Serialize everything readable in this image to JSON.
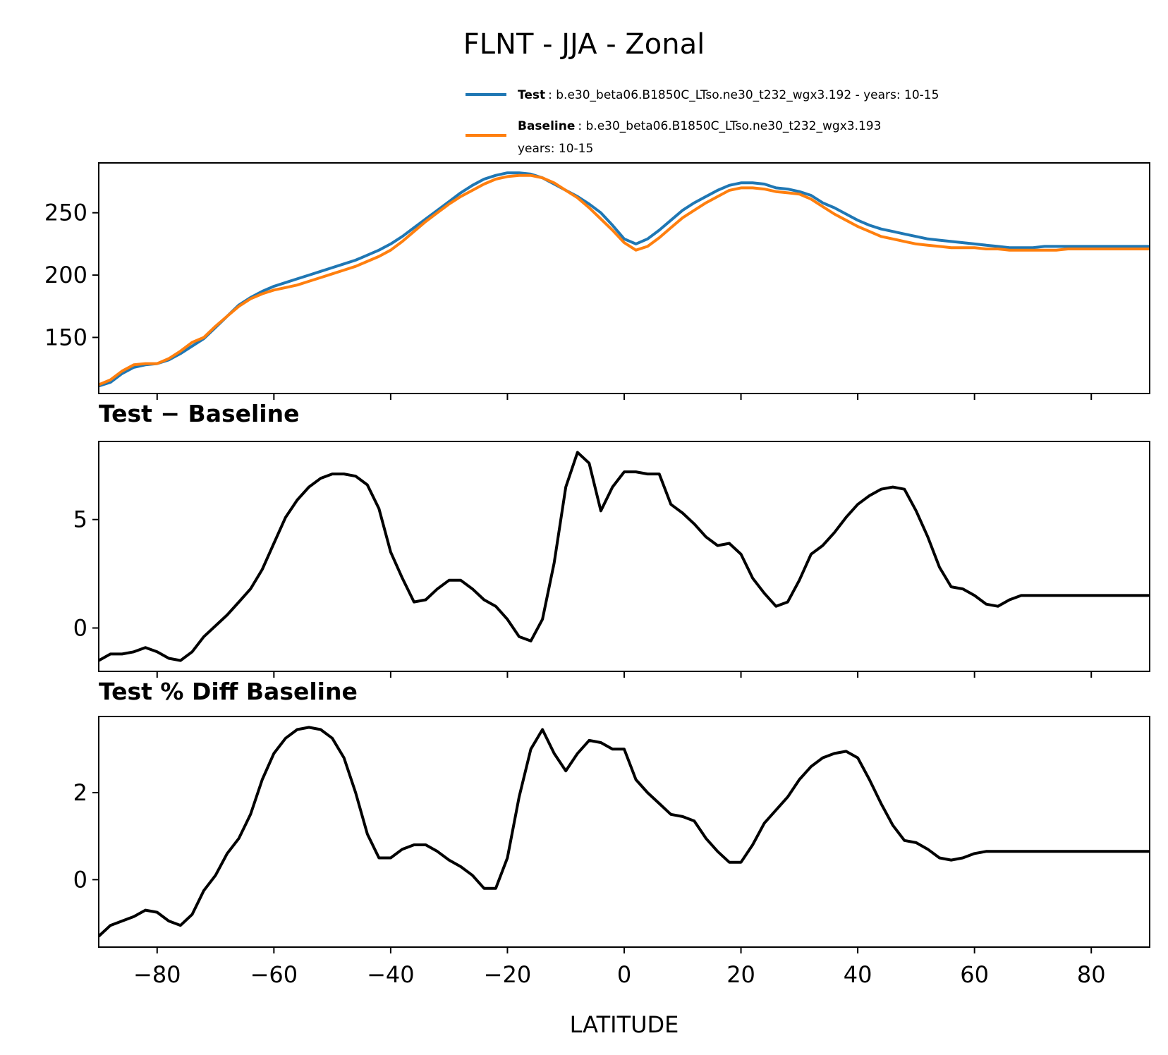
{
  "title": "FLNT - JJA - Zonal",
  "legend": {
    "placement": "top-right",
    "test_name": "Test",
    "test_desc": ": b.e30_beta06.B1850C_LTso.ne30_t232_wgx3.192 - years: 10-15",
    "base_name": "Baseline",
    "base_desc_line1": ": b.e30_beta06.B1850C_LTso.ne30_t232_wgx3.193",
    "base_desc_line2": "years: 10-15"
  },
  "colors": {
    "test": "#1f77b4",
    "baseline": "#ff7f0e",
    "diff": "#000000"
  },
  "chart_data": [
    {
      "type": "line",
      "title": "",
      "xlabel": "",
      "ylabel": "",
      "xlim": [
        -90,
        90
      ],
      "ylim": [
        105,
        290
      ],
      "yticks": [
        150,
        200,
        250
      ],
      "ytick_labels": [
        "150",
        "200",
        "250"
      ],
      "x": [
        -90,
        -88,
        -86,
        -84,
        -82,
        -80,
        -78,
        -76,
        -74,
        -72,
        -70,
        -68,
        -66,
        -64,
        -62,
        -60,
        -58,
        -56,
        -54,
        -52,
        -50,
        -48,
        -46,
        -44,
        -42,
        -40,
        -38,
        -36,
        -34,
        -32,
        -30,
        -28,
        -26,
        -24,
        -22,
        -20,
        -18,
        -16,
        -14,
        -12,
        -10,
        -8,
        -6,
        -4,
        -2,
        0,
        2,
        4,
        6,
        8,
        10,
        12,
        14,
        16,
        18,
        20,
        22,
        24,
        26,
        28,
        30,
        32,
        34,
        36,
        38,
        40,
        42,
        44,
        46,
        48,
        50,
        52,
        54,
        56,
        58,
        60,
        62,
        64,
        66,
        68,
        70,
        72,
        74,
        76,
        78,
        80,
        82,
        84,
        86,
        88,
        90
      ],
      "series": [
        {
          "name": "Test",
          "values": [
            111,
            114,
            121,
            126,
            128,
            129,
            132,
            137,
            143,
            149,
            158,
            167,
            176,
            182,
            187,
            191,
            194,
            197,
            200,
            203,
            206,
            209,
            212,
            216,
            220,
            225,
            231,
            238,
            245,
            252,
            259,
            266,
            272,
            277,
            280,
            282,
            282,
            281,
            278,
            273,
            268,
            263,
            257,
            250,
            240,
            229,
            225,
            229,
            236,
            244,
            252,
            258,
            263,
            268,
            272,
            274,
            274,
            273,
            270,
            269,
            267,
            264,
            258,
            254,
            249,
            244,
            240,
            237,
            235,
            233,
            231,
            229,
            228,
            227,
            226,
            225,
            224,
            223,
            222,
            222,
            222,
            223,
            223,
            223,
            223,
            223,
            223,
            223,
            223,
            223,
            223
          ],
          "color": "#1f77b4"
        },
        {
          "name": "Baseline",
          "values": [
            112,
            116,
            123,
            128,
            129,
            129,
            133,
            139,
            146,
            150,
            159,
            167,
            175,
            181,
            185,
            188,
            190,
            192,
            195,
            198,
            201,
            204,
            207,
            211,
            215,
            220,
            227,
            235,
            243,
            250,
            257,
            263,
            268,
            273,
            277,
            279,
            280,
            280,
            278,
            274,
            268,
            262,
            254,
            245,
            236,
            226,
            220,
            223,
            230,
            238,
            246,
            252,
            258,
            263,
            268,
            270,
            270,
            269,
            267,
            266,
            265,
            261,
            255,
            249,
            244,
            239,
            235,
            231,
            229,
            227,
            225,
            224,
            223,
            222,
            222,
            222,
            221,
            221,
            220,
            220,
            220,
            220,
            220,
            221,
            221,
            221,
            221,
            221,
            221,
            221,
            221
          ],
          "color": "#ff7f0e"
        }
      ]
    },
    {
      "type": "line",
      "title": "Test − Baseline",
      "xlabel": "",
      "ylabel": "",
      "xlim": [
        -90,
        90
      ],
      "ylim": [
        -2.0,
        8.6
      ],
      "yticks": [
        0,
        5
      ],
      "ytick_labels": [
        "0",
        "5"
      ],
      "x": [
        -90,
        -88,
        -86,
        -84,
        -82,
        -80,
        -78,
        -76,
        -74,
        -72,
        -70,
        -68,
        -66,
        -64,
        -62,
        -60,
        -58,
        -56,
        -54,
        -52,
        -50,
        -48,
        -46,
        -44,
        -42,
        -40,
        -38,
        -36,
        -34,
        -32,
        -30,
        -28,
        -26,
        -24,
        -22,
        -20,
        -18,
        -16,
        -14,
        -12,
        -10,
        -8,
        -6,
        -4,
        -2,
        0,
        2,
        4,
        6,
        8,
        10,
        12,
        14,
        16,
        18,
        20,
        22,
        24,
        26,
        28,
        30,
        32,
        34,
        36,
        38,
        40,
        42,
        44,
        46,
        48,
        50,
        52,
        54,
        56,
        58,
        60,
        62,
        64,
        66,
        68,
        70,
        72,
        74,
        76,
        78,
        80,
        82,
        84,
        86,
        88,
        90
      ],
      "series": [
        {
          "name": "Test − Baseline",
          "values": [
            -1.5,
            -1.2,
            -1.2,
            -1.1,
            -0.9,
            -1.1,
            -1.4,
            -1.5,
            -1.1,
            -0.4,
            0.1,
            0.6,
            1.2,
            1.8,
            2.7,
            3.9,
            5.1,
            5.9,
            6.5,
            6.9,
            7.1,
            7.1,
            7.0,
            6.6,
            5.5,
            3.5,
            2.3,
            1.2,
            1.3,
            1.8,
            2.2,
            2.2,
            1.8,
            1.3,
            1.0,
            0.4,
            -0.4,
            -0.6,
            0.4,
            3.0,
            6.5,
            8.1,
            7.6,
            5.4,
            6.5,
            7.2,
            7.2,
            7.1,
            7.1,
            5.7,
            5.3,
            4.8,
            4.2,
            3.8,
            3.9,
            3.4,
            2.3,
            1.6,
            1.0,
            1.2,
            2.2,
            3.4,
            3.8,
            4.4,
            5.1,
            5.7,
            6.1,
            6.4,
            6.5,
            6.4,
            5.4,
            4.2,
            2.8,
            1.9,
            1.8,
            1.5,
            1.1,
            1.0,
            1.3,
            1.5,
            1.5,
            1.5,
            1.5,
            1.5,
            1.5,
            1.5,
            1.5,
            1.5,
            1.5,
            1.5,
            1.5
          ],
          "color": "#000000"
        }
      ]
    },
    {
      "type": "line",
      "title": "Test % Diff Baseline",
      "xlabel": "LATITUDE",
      "ylabel": "",
      "xlim": [
        -90,
        90
      ],
      "ylim": [
        -1.55,
        3.75
      ],
      "yticks": [
        0,
        2
      ],
      "ytick_labels": [
        "0",
        "2"
      ],
      "xticks": [
        -80,
        -60,
        -40,
        -20,
        0,
        20,
        40,
        60,
        80
      ],
      "xtick_labels": [
        "−80",
        "−60",
        "−40",
        "−20",
        "0",
        "20",
        "40",
        "60",
        "80"
      ],
      "x": [
        -90,
        -88,
        -86,
        -84,
        -82,
        -80,
        -78,
        -76,
        -74,
        -72,
        -70,
        -68,
        -66,
        -64,
        -62,
        -60,
        -58,
        -56,
        -54,
        -52,
        -50,
        -48,
        -46,
        -44,
        -42,
        -40,
        -38,
        -36,
        -34,
        -32,
        -30,
        -28,
        -26,
        -24,
        -22,
        -20,
        -18,
        -16,
        -14,
        -12,
        -10,
        -8,
        -6,
        -4,
        -2,
        0,
        2,
        4,
        6,
        8,
        10,
        12,
        14,
        16,
        18,
        20,
        22,
        24,
        26,
        28,
        30,
        32,
        34,
        36,
        38,
        40,
        42,
        44,
        46,
        48,
        50,
        52,
        54,
        56,
        58,
        60,
        62,
        64,
        66,
        68,
        70,
        72,
        74,
        76,
        78,
        80,
        82,
        84,
        86,
        88,
        90
      ],
      "series": [
        {
          "name": "Test % Diff Baseline",
          "values": [
            -1.3,
            -1.05,
            -0.95,
            -0.85,
            -0.7,
            -0.75,
            -0.95,
            -1.05,
            -0.8,
            -0.25,
            0.1,
            0.6,
            0.95,
            1.5,
            2.3,
            2.9,
            3.25,
            3.45,
            3.5,
            3.45,
            3.25,
            2.8,
            2.0,
            1.05,
            0.5,
            0.5,
            0.7,
            0.8,
            0.8,
            0.65,
            0.45,
            0.3,
            0.1,
            -0.2,
            -0.2,
            0.5,
            1.9,
            3.0,
            3.45,
            2.9,
            2.5,
            2.9,
            3.2,
            3.15,
            3.0,
            3.0,
            2.3,
            2.0,
            1.75,
            1.5,
            1.45,
            1.35,
            0.95,
            0.65,
            0.4,
            0.4,
            0.8,
            1.3,
            1.6,
            1.9,
            2.3,
            2.6,
            2.8,
            2.9,
            2.95,
            2.8,
            2.3,
            1.75,
            1.25,
            0.9,
            0.85,
            0.7,
            0.5,
            0.45,
            0.5,
            0.6,
            0.65,
            0.65,
            0.65,
            0.65,
            0.65,
            0.65,
            0.65,
            0.65,
            0.65,
            0.65,
            0.65,
            0.65,
            0.65,
            0.65,
            0.65
          ],
          "color": "#000000"
        }
      ]
    }
  ]
}
